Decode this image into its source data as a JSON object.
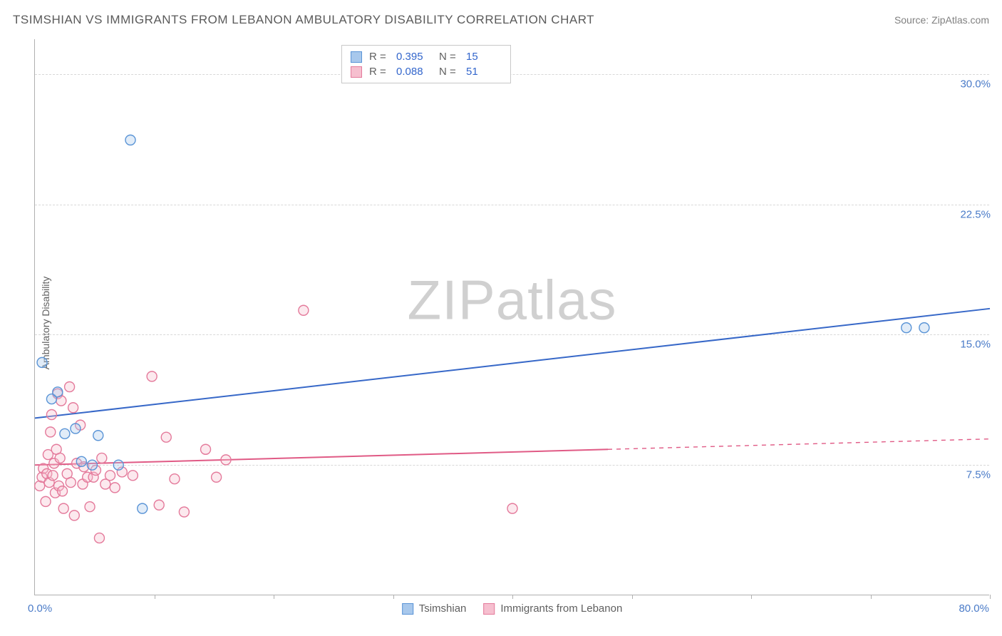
{
  "title": "TSIMSHIAN VS IMMIGRANTS FROM LEBANON AMBULATORY DISABILITY CORRELATION CHART",
  "source": "Source: ZipAtlas.com",
  "watermark_a": "ZIP",
  "watermark_b": "atlas",
  "chart": {
    "type": "scatter",
    "y_label": "Ambulatory Disability",
    "xlim": [
      0,
      80
    ],
    "ylim": [
      0,
      32
    ],
    "x_ticks": [
      10,
      20,
      30,
      40,
      50,
      60,
      70,
      80
    ],
    "x_min_label": "0.0%",
    "x_max_label": "80.0%",
    "y_gridlines": [
      {
        "v": 7.5,
        "label": "7.5%"
      },
      {
        "v": 15.0,
        "label": "15.0%"
      },
      {
        "v": 22.5,
        "label": "22.5%"
      },
      {
        "v": 30.0,
        "label": "30.0%"
      }
    ],
    "background_color": "#ffffff",
    "grid_color": "#d8d8d8",
    "axis_color": "#b0b0b0",
    "label_color": "#606060",
    "tick_label_color": "#4a7bc8",
    "marker_radius": 7,
    "marker_fill_opacity": 0.35,
    "marker_stroke_width": 1.4,
    "line_width": 2
  },
  "series": [
    {
      "name": "Tsimshian",
      "color_fill": "#a8c8ec",
      "color_stroke": "#5a94d6",
      "line_color": "#3768c8",
      "R": "0.395",
      "N": "15",
      "regression": {
        "x1": 0,
        "y1": 10.2,
        "x2": 80,
        "y2": 16.5,
        "solid_to_x": 80
      },
      "points": [
        [
          0.6,
          13.4
        ],
        [
          1.4,
          11.3
        ],
        [
          1.9,
          11.7
        ],
        [
          2.5,
          9.3
        ],
        [
          3.4,
          9.6
        ],
        [
          3.9,
          7.7
        ],
        [
          4.8,
          7.5
        ],
        [
          5.3,
          9.2
        ],
        [
          7.0,
          7.5
        ],
        [
          8.0,
          26.2
        ],
        [
          9.0,
          5.0
        ],
        [
          73.0,
          15.4
        ],
        [
          74.5,
          15.4
        ]
      ]
    },
    {
      "name": "Immigrants from Lebanon",
      "color_fill": "#f6bfcf",
      "color_stroke": "#e47a9b",
      "line_color": "#e05a85",
      "R": "0.088",
      "N": "51",
      "regression": {
        "x1": 0,
        "y1": 7.5,
        "x2": 80,
        "y2": 9.0,
        "solid_to_x": 48
      },
      "points": [
        [
          0.4,
          6.3
        ],
        [
          0.6,
          6.8
        ],
        [
          0.7,
          7.3
        ],
        [
          0.9,
          5.4
        ],
        [
          1.0,
          7.0
        ],
        [
          1.1,
          8.1
        ],
        [
          1.2,
          6.5
        ],
        [
          1.3,
          9.4
        ],
        [
          1.4,
          10.4
        ],
        [
          1.5,
          6.9
        ],
        [
          1.6,
          7.6
        ],
        [
          1.7,
          5.9
        ],
        [
          1.8,
          8.4
        ],
        [
          1.9,
          11.6
        ],
        [
          2.0,
          6.3
        ],
        [
          2.1,
          7.9
        ],
        [
          2.2,
          11.2
        ],
        [
          2.3,
          6.0
        ],
        [
          2.4,
          5.0
        ],
        [
          2.7,
          7.0
        ],
        [
          2.9,
          12.0
        ],
        [
          3.0,
          6.5
        ],
        [
          3.2,
          10.8
        ],
        [
          3.3,
          4.6
        ],
        [
          3.5,
          7.6
        ],
        [
          3.8,
          9.8
        ],
        [
          4.0,
          6.4
        ],
        [
          4.1,
          7.4
        ],
        [
          4.4,
          6.8
        ],
        [
          4.6,
          5.1
        ],
        [
          4.9,
          6.8
        ],
        [
          5.1,
          7.2
        ],
        [
          5.4,
          3.3
        ],
        [
          5.6,
          7.9
        ],
        [
          5.9,
          6.4
        ],
        [
          6.3,
          6.9
        ],
        [
          6.7,
          6.2
        ],
        [
          7.3,
          7.1
        ],
        [
          8.2,
          6.9
        ],
        [
          9.8,
          12.6
        ],
        [
          10.4,
          5.2
        ],
        [
          11.0,
          9.1
        ],
        [
          11.7,
          6.7
        ],
        [
          12.5,
          4.8
        ],
        [
          14.3,
          8.4
        ],
        [
          15.2,
          6.8
        ],
        [
          16.0,
          7.8
        ],
        [
          22.5,
          16.4
        ],
        [
          40.0,
          5.0
        ]
      ]
    }
  ],
  "stats_labels": {
    "R": "R  =",
    "N": "N  ="
  },
  "legend_labels": {
    "tsimshian": "Tsimshian",
    "lebanon": "Immigrants from Lebanon"
  }
}
